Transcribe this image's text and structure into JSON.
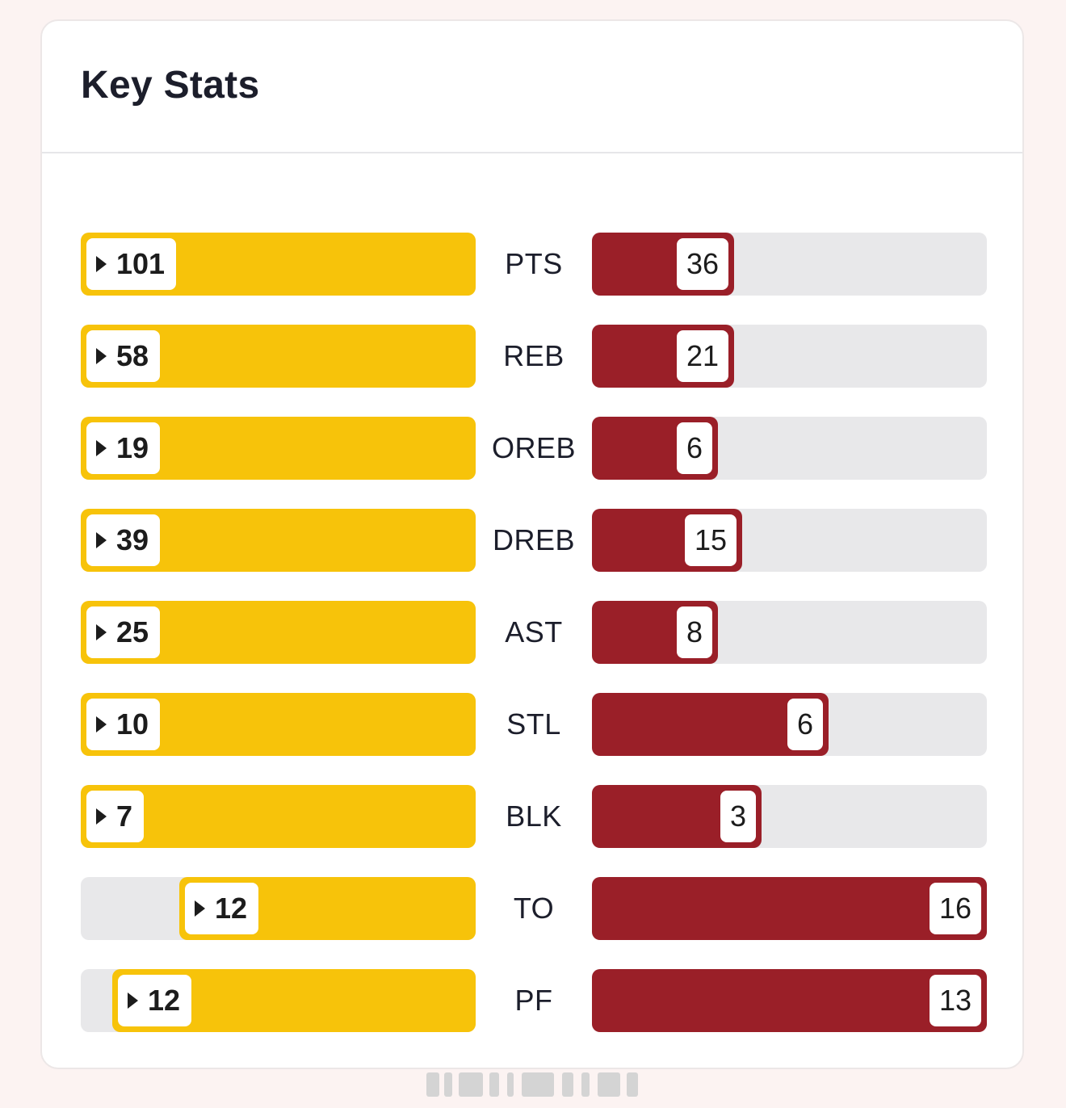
{
  "card": {
    "title": "Key Stats"
  },
  "colors": {
    "left_team": "#f7c30a",
    "right_team": "#9a1f28",
    "track": "#e8e8ea"
  },
  "chart_data": {
    "type": "bar",
    "categories": [
      "PTS",
      "REB",
      "OREB",
      "DREB",
      "AST",
      "STL",
      "BLK",
      "TO",
      "PF"
    ],
    "series": [
      {
        "values": [
          101,
          58,
          19,
          39,
          25,
          10,
          7,
          12,
          12
        ],
        "color": "#f7c30a"
      },
      {
        "values": [
          36,
          21,
          6,
          15,
          8,
          6,
          3,
          16,
          13
        ],
        "color": "#9a1f28"
      }
    ],
    "left_fill_fraction": [
      1,
      1,
      1,
      1,
      1,
      1,
      1,
      0.75,
      0.92
    ],
    "right_fill_fraction": [
      0.36,
      0.36,
      0.32,
      0.38,
      0.32,
      0.6,
      0.43,
      1,
      1
    ]
  }
}
